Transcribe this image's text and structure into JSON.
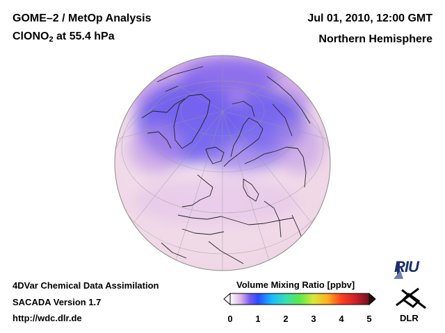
{
  "header": {
    "title_line1": "GOME–2 / MetOp Analysis",
    "title_species": "ClONO",
    "title_subscript": "2",
    "title_level": " at 55.4 hPa",
    "date": "Jul 01, 2010, 12:00 GMT",
    "region": "Northern Hemisphere"
  },
  "footer": {
    "line1": "4DVar Chemical Data Assimilation",
    "line2": "SACADA Version 1.7",
    "line3": "http://wdc.dlr.de"
  },
  "colorbar": {
    "title": "Volume Mixing Ratio [ppbv]",
    "ticks": [
      "0",
      "1",
      "2",
      "3",
      "4",
      "5"
    ],
    "min": 0,
    "max": 5,
    "colors": [
      "#ffffff",
      "#d8b0e8",
      "#7b5cf0",
      "#2a4cff",
      "#19b9ff",
      "#39e0b0",
      "#5ee84a",
      "#d8e838",
      "#ffb020",
      "#ff4020",
      "#d0202a",
      "#701020"
    ]
  },
  "logos": {
    "riu": "RIU",
    "dlr": "DLR"
  },
  "colors": {
    "low_field": "#f4e4ee",
    "mid_field": "#c89ee6",
    "high_field": "#6a5cf0",
    "coast": "#222222"
  }
}
